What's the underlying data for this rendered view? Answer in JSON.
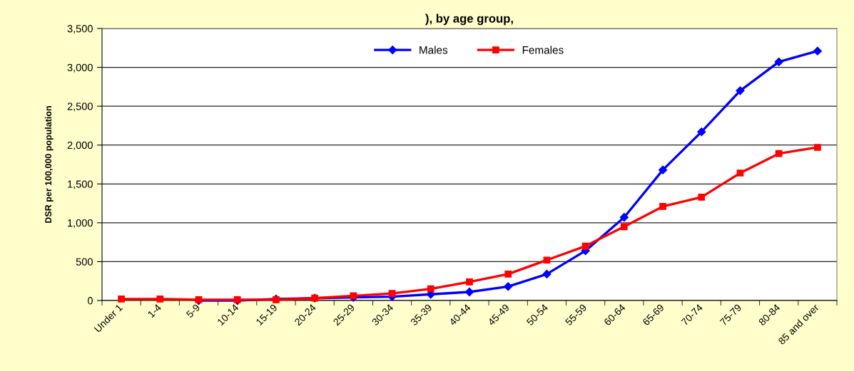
{
  "chart_data": {
    "type": "line",
    "title": "), by age group,",
    "ylabel": "DSR per 100,000 population",
    "categories": [
      "Under 1",
      "1-4",
      "5-9",
      "10-14",
      "15-19",
      "20-24",
      "25-29",
      "30-34",
      "35-39",
      "40-44",
      "45-49",
      "50-54",
      "55-59",
      "60-64",
      "65-69",
      "70-74",
      "75-79",
      "80-84",
      "85 and over"
    ],
    "series": [
      {
        "name": "Males",
        "color": "#0000ff",
        "marker": "diamond",
        "values": [
          null,
          null,
          0,
          0,
          20,
          30,
          40,
          50,
          80,
          110,
          180,
          340,
          640,
          1070,
          1680,
          2170,
          2700,
          3070,
          3210
        ]
      },
      {
        "name": "Females",
        "color": "#ff0000",
        "marker": "square",
        "values": [
          20,
          20,
          10,
          10,
          10,
          30,
          60,
          90,
          150,
          240,
          340,
          520,
          700,
          950,
          1210,
          1330,
          1640,
          1890,
          1970
        ]
      }
    ],
    "ylim": [
      0,
      3500
    ],
    "yticks": [
      0,
      500,
      {
        "value": 1000,
        "label": "1,000"
      },
      {
        "value": 1500,
        "label": "1,500"
      },
      {
        "value": 2000,
        "label": "2,000"
      },
      {
        "value": 2500,
        "label": "2,500"
      },
      {
        "value": 3000,
        "label": "3,000"
      },
      {
        "value": 3500,
        "label": "3,500"
      }
    ],
    "grid": "y",
    "legend": "top",
    "line_style": "solid"
  }
}
